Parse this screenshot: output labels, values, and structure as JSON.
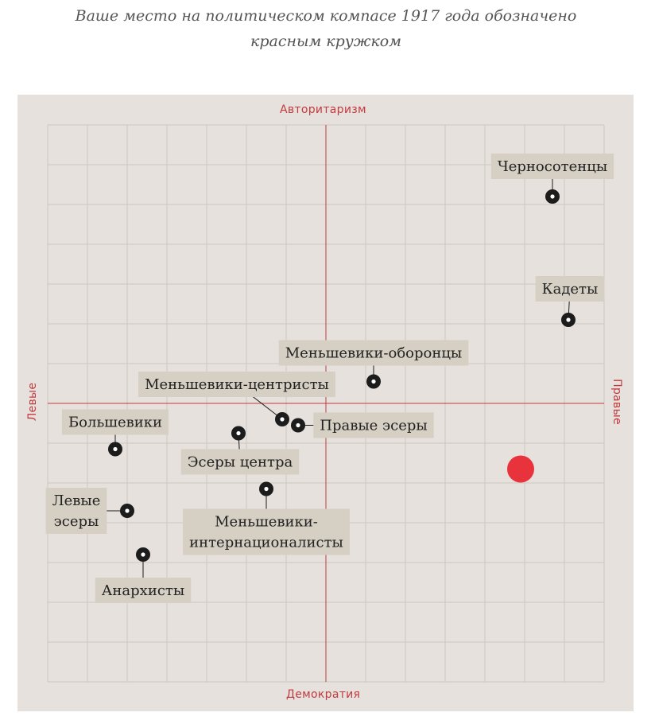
{
  "caption": {
    "line1": "Ваше место на политическом компасе 1917 года обозначено",
    "line2": "красным кружком"
  },
  "axes": {
    "top": "Авторитаризм",
    "bottom": "Демократия",
    "left": "Левые",
    "right": "Правые"
  },
  "colors": {
    "panel_bg": "#e6e1dc",
    "grid": "#cfc8c1",
    "axis": "#c23a3f",
    "axis_label": "#c23a3f",
    "label_box": "#d6cfc3",
    "marker": "#1c1c1c",
    "user_dot": "#e8333c"
  },
  "chart_data": {
    "type": "scatter",
    "xlim": [
      -7,
      7
    ],
    "ylim": [
      -7,
      7
    ],
    "grid": true,
    "points": [
      {
        "name": "Черносотенцы",
        "x": 5.7,
        "y": 5.2
      },
      {
        "name": "Кадеты",
        "x": 6.1,
        "y": 2.1
      },
      {
        "name": "Меньшевики-оборонцы",
        "x": 1.2,
        "y": 0.55
      },
      {
        "name": "Меньшевики-центристы",
        "x": -1.1,
        "y": -0.4
      },
      {
        "name": "Правые эсеры",
        "x": -0.7,
        "y": -0.55
      },
      {
        "name": "Большевики",
        "x": -5.3,
        "y": -1.15
      },
      {
        "name": "Эсеры центра",
        "x": -2.2,
        "y": -0.75
      },
      {
        "name": "Меньшевики-интернационалисты",
        "x": -1.5,
        "y": -2.15
      },
      {
        "name": "Левые эсеры",
        "x": -5.0,
        "y": -2.7
      },
      {
        "name": "Анархисты",
        "x": -4.6,
        "y": -3.8
      }
    ],
    "user_point": {
      "x": 4.9,
      "y": -1.65
    }
  }
}
